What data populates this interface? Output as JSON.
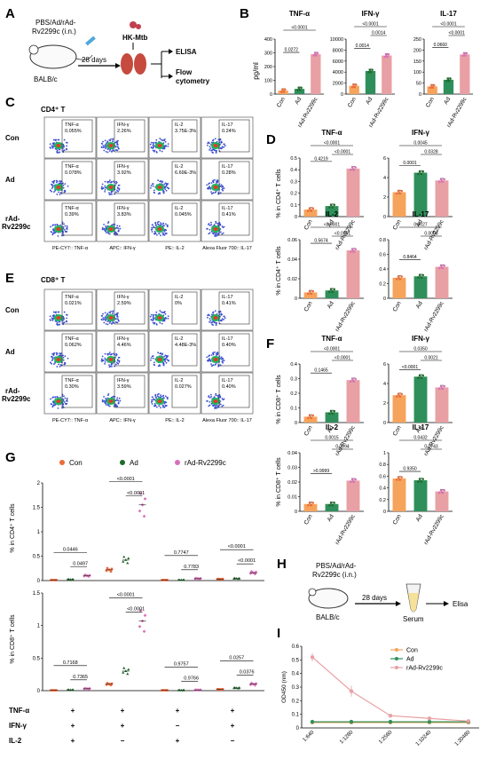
{
  "colors": {
    "con": "#f6a35b",
    "ad": "#2f8f5b",
    "rad": "#e8a0a4",
    "radDot": "#d870b8",
    "adDot": "#1d6b2a",
    "conDot": "#ee6a3a"
  },
  "panelA": {
    "letter": "A",
    "treatment": "PBS/Ad/rAd-",
    "treatment2": "Rv2299c (i.n.)",
    "mouse": "BALB/c",
    "days": "28 days",
    "challenge": "HK-Mtb",
    "out1": "ELISA",
    "out2": "Flow",
    "out3": "cytometry"
  },
  "panelB": {
    "letter": "B",
    "ylabel": "pg/ml"
  },
  "panelC": {
    "letter": "C",
    "title": "CD4⁺ T",
    "rows": [
      "Con",
      "Ad",
      "rAd-",
      "Rv2299c"
    ],
    "gates": [
      [
        "TNF-α\n0.055%",
        "IFN-γ\n2.26%",
        "IL-2\n3.75E-3%",
        "IL-17\n0.24%"
      ],
      [
        "TNF-α\n0.078%",
        "IFN-γ\n3.92%",
        "IL-2\n6.69E-3%",
        "IL-17\n0.28%"
      ],
      [
        "TNF-α\n0.39%",
        "IFN-γ\n3.83%",
        "IL-2\n0.045%",
        "IL-17\n0.41%"
      ]
    ],
    "axes": [
      "PE-CY7:: TNF-α",
      "APC:: IFN-γ",
      "PE:: IL-2",
      "Alexa Fluor 700:: IL-17"
    ]
  },
  "panelD": {
    "letter": "D",
    "ylabel1": "% in CD4⁺ T cells",
    "ylabel2": "% in CD4⁺ T cells"
  },
  "panelE": {
    "letter": "E",
    "title": "CD8⁺ T",
    "rows": [
      "Con",
      "Ad",
      "rAd-",
      "Rv2299c"
    ],
    "gates": [
      [
        "TNF-α\n0.021%",
        "IFN-γ\n2.59%",
        "IL-2\n0%",
        "IL-17\n0.41%"
      ],
      [
        "TNF-α\n0.062%",
        "IFN-γ\n4.46%",
        "IL-2\n4.48E-3%",
        "IL-17\n0.40%"
      ],
      [
        "TNF-α\n0.30%",
        "IFN-γ\n3.59%",
        "IL-2\n0.027%",
        "IL-17\n0.40%"
      ]
    ],
    "axes": [
      "PE-CY7:: TNF-α",
      "APC:: IFN-γ",
      "PE:: IL-2",
      "Alexa Fluor 700:: IL-17"
    ]
  },
  "panelF": {
    "letter": "F",
    "ylabel1": "% in CD8⁺ T cells",
    "ylabel2": "% in CD8⁺ T cells"
  },
  "panelG": {
    "letter": "G",
    "legend": [
      "Con",
      "Ad",
      "rAd-Rv2299c"
    ],
    "ylabel1": "% in CD4⁺ T cells",
    "ylabel2": "% in CD8⁺ T cells",
    "rowLabels": [
      "TNF-α",
      "IFN-γ",
      "IL-2"
    ],
    "signs": [
      [
        "+",
        "+",
        "+",
        "+"
      ],
      [
        "+",
        "+",
        "−",
        "+"
      ],
      [
        "+",
        "−",
        "+",
        "−"
      ]
    ]
  },
  "panelH": {
    "letter": "H",
    "treatment": "PBS/Ad/rAd-",
    "treatment2": "Rv2299c (i.n.)",
    "mouse": "BALB/c",
    "days": "28 days",
    "serum": "Serum",
    "elisa": "Elisa"
  },
  "panelI": {
    "letter": "I",
    "legend": [
      "Con",
      "Ad",
      "rAd-Rv2299c"
    ]
  },
  "chart_data": [
    {
      "id": "B-TNF",
      "type": "bar",
      "title": "TNF-α",
      "categories": [
        "Con",
        "Ad",
        "rAd-Rv2299c"
      ],
      "values": [
        25,
        38,
        290
      ],
      "ylim": [
        0,
        400
      ],
      "yticks": [
        0,
        100,
        200,
        300,
        400
      ],
      "ylabel": "pg/ml",
      "pvals": [
        "0.0272",
        "<0.0001"
      ]
    },
    {
      "id": "B-IFN",
      "type": "bar",
      "title": "IFN-γ",
      "categories": [
        "Con",
        "Ad",
        "rAd-Rv2299c"
      ],
      "values": [
        1500,
        4200,
        7000
      ],
      "ylim": [
        0,
        10000
      ],
      "yticks": [
        0,
        2000,
        4000,
        6000,
        8000,
        10000
      ],
      "pvals": [
        "0.0014",
        "0.0014",
        "<0.0001"
      ]
    },
    {
      "id": "B-IL17",
      "type": "bar",
      "title": "IL-17",
      "categories": [
        "Con",
        "Ad",
        "rAd-Rv2299c"
      ],
      "values": [
        35,
        65,
        180
      ],
      "ylim": [
        0,
        250
      ],
      "yticks": [
        0,
        50,
        100,
        150,
        200,
        250
      ],
      "pvals": [
        "0.0660",
        "<0.0001",
        "<0.0001"
      ]
    },
    {
      "id": "D-TNF",
      "type": "bar",
      "title": "TNF-α",
      "categories": [
        "Con",
        "Ad",
        "rAd-Rv2299c"
      ],
      "values": [
        0.06,
        0.09,
        0.41
      ],
      "ylim": [
        0,
        0.5
      ],
      "yticks": [
        0,
        0.1,
        0.2,
        0.3,
        0.4,
        0.5
      ],
      "pvals": [
        "0.4219",
        "<0.0001",
        "<0.0001"
      ]
    },
    {
      "id": "D-IFN",
      "type": "bar",
      "title": "IFN-γ",
      "categories": [
        "Con",
        "Ad",
        "rAd-Rv2299c"
      ],
      "values": [
        2.5,
        4.5,
        3.7
      ],
      "ylim": [
        0,
        6
      ],
      "yticks": [
        0,
        2,
        4,
        6
      ],
      "pvals": [
        "0.0001",
        "0.0328",
        "0.0045"
      ]
    },
    {
      "id": "D-IL2",
      "type": "bar",
      "title": "IL-2",
      "categories": [
        "Con",
        "Ad",
        "rAd-Rv2299c"
      ],
      "values": [
        0.006,
        0.008,
        0.049
      ],
      "ylim": [
        0,
        0.06
      ],
      "yticks": [
        0,
        0.02,
        0.04,
        0.06
      ],
      "pvals": [
        "0.5674",
        "<0.0001",
        "<0.0001"
      ]
    },
    {
      "id": "D-IL17",
      "type": "bar",
      "title": "IL-17",
      "categories": [
        "Con",
        "Ad",
        "rAd-Rv2299c"
      ],
      "values": [
        0.28,
        0.3,
        0.43
      ],
      "ylim": [
        0,
        0.8
      ],
      "yticks": [
        0,
        0.2,
        0.4,
        0.6,
        0.8
      ],
      "pvals": [
        "0.8464",
        "0.0058",
        "0.0027"
      ]
    },
    {
      "id": "F-TNF",
      "type": "bar",
      "title": "TNF-α",
      "categories": [
        "Con",
        "Ad",
        "rAd-Rv2299c"
      ],
      "values": [
        0.04,
        0.07,
        0.29
      ],
      "ylim": [
        0,
        0.4
      ],
      "yticks": [
        0,
        0.1,
        0.2,
        0.3,
        0.4
      ],
      "pvals": [
        "0.1465",
        "<0.0001",
        "<0.0001"
      ]
    },
    {
      "id": "F-IFN",
      "type": "bar",
      "title": "IFN-γ",
      "categories": [
        "Con",
        "Ad",
        "rAd-Rv2299c"
      ],
      "values": [
        2.8,
        4.7,
        3.6
      ],
      "ylim": [
        0,
        6
      ],
      "yticks": [
        0,
        2,
        4,
        6
      ],
      "pvals": [
        "<0.0001",
        "0.0021",
        "0.0350"
      ]
    },
    {
      "id": "F-IL2",
      "type": "bar",
      "title": "IL-2",
      "categories": [
        "Con",
        "Ad",
        "rAd-Rv2299c"
      ],
      "values": [
        0.005,
        0.005,
        0.021
      ],
      "ylim": [
        0,
        0.04
      ],
      "yticks": [
        0,
        0.01,
        0.02,
        0.03,
        0.04
      ],
      "pvals": [
        ">0.9999",
        "0.0094",
        "0.0015"
      ]
    },
    {
      "id": "F-IL17",
      "type": "bar",
      "title": "IL-17",
      "categories": [
        "Con",
        "Ad",
        "rAd-Rv2299c"
      ],
      "values": [
        0.56,
        0.53,
        0.34
      ],
      "ylim": [
        0,
        1
      ],
      "yticks": [
        0,
        0.2,
        0.4,
        0.6,
        0.8,
        1.0
      ],
      "pvals": [
        "0.9350",
        "0.0743",
        "0.0432"
      ]
    },
    {
      "id": "G-CD4",
      "type": "scatter",
      "ylim": [
        0,
        2.0
      ],
      "yticks": [
        0,
        0.5,
        1.0,
        1.5,
        2.0
      ],
      "groups": [
        {
          "con": 0.01,
          "ad": 0.02,
          "rad": 0.1,
          "p1": "0.0446",
          "p2": "0.0497"
        },
        {
          "con": 0.22,
          "ad": 0.42,
          "rad": 1.55,
          "p1": "<0.0001",
          "p2": "<0.0001"
        },
        {
          "con": 0.01,
          "ad": 0.01,
          "rad": 0.04,
          "p1": "0.7747",
          "p2": "0.7783"
        },
        {
          "con": 0.03,
          "ad": 0.04,
          "rad": 0.16,
          "p1": "<0.0001",
          "p2": "<0.0001"
        }
      ]
    },
    {
      "id": "G-CD8",
      "type": "scatter",
      "ylim": [
        0,
        1.5
      ],
      "yticks": [
        0,
        0.5,
        1.0,
        1.5
      ],
      "groups": [
        {
          "con": 0.005,
          "ad": 0.01,
          "rad": 0.03,
          "p1": "0.7168",
          "p2": "0.7365"
        },
        {
          "con": 0.1,
          "ad": 0.3,
          "rad": 1.07,
          "p1": "<0.0001",
          "p2": "<0.0001"
        },
        {
          "con": 0.005,
          "ad": 0.005,
          "rad": 0.01,
          "p1": "0.9757",
          "p2": "0.9766"
        },
        {
          "con": 0.02,
          "ad": 0.04,
          "rad": 0.1,
          "p1": "0.0257",
          "p2": "0.0376"
        }
      ]
    },
    {
      "id": "I",
      "type": "line",
      "ylabel": "OD450 (nm)",
      "categories": [
        "1:640",
        "1:1280",
        "1:2560",
        "1:10240",
        "1:20480"
      ],
      "ylim": [
        0,
        0.6
      ],
      "yticks": [
        0,
        0.1,
        0.2,
        0.3,
        0.4,
        0.5,
        0.6
      ],
      "series": [
        {
          "name": "Con",
          "values": [
            0.04,
            0.04,
            0.04,
            0.04,
            0.04
          ]
        },
        {
          "name": "Ad",
          "values": [
            0.045,
            0.045,
            0.045,
            0.045,
            0.045
          ]
        },
        {
          "name": "rAd-Rv2299c",
          "values": [
            0.52,
            0.27,
            0.09,
            0.07,
            0.05
          ]
        }
      ]
    }
  ]
}
